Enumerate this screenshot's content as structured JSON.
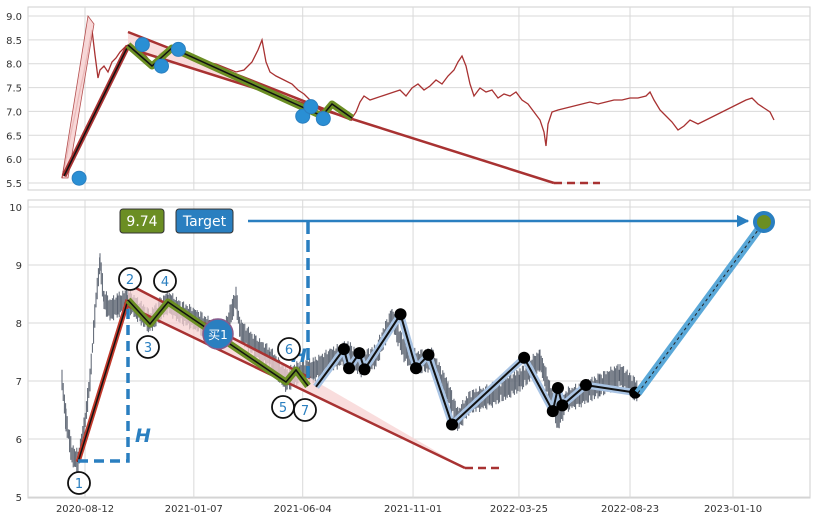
{
  "chart_data": [
    {
      "type": "line",
      "panel": "top",
      "ylim": [
        5.3,
        9.1
      ],
      "y_ticks": [
        "5.5",
        "6.0",
        "6.5",
        "7.0",
        "7.5",
        "8.0",
        "8.5",
        "9.0"
      ],
      "grid": true,
      "price_line_color": "#a83232",
      "markers": [
        {
          "x": "2020-08-04",
          "y": 5.6
        },
        {
          "x": "2020-10-29",
          "y": 8.4
        },
        {
          "x": "2020-11-24",
          "y": 7.95
        },
        {
          "x": "2020-12-17",
          "y": 8.3
        },
        {
          "x": "2021-06-04",
          "y": 6.9
        },
        {
          "x": "2021-06-15",
          "y": 7.1
        },
        {
          "x": "2021-07-02",
          "y": 6.85
        }
      ]
    },
    {
      "type": "line",
      "panel": "bottom",
      "ylim": [
        5,
        10.1
      ],
      "y_ticks": [
        "5",
        "6",
        "7",
        "8",
        "9",
        "10"
      ],
      "x_ticks": [
        "2020-08-12",
        "2021-01-07",
        "2021-06-04",
        "2021-11-01",
        "2022-03-25",
        "2022-08-23",
        "2023-01-10"
      ],
      "grid": true,
      "pattern_points": [
        {
          "label": "1",
          "x": "2020-08-12",
          "y": 5.6
        },
        {
          "label": "2",
          "x": "2020-10-29",
          "y": 8.35
        },
        {
          "label": "3",
          "x": "2020-11-24",
          "y": 7.95
        },
        {
          "label": "4",
          "x": "2020-12-17",
          "y": 8.3
        },
        {
          "label": "5",
          "x": "2021-06-04",
          "y": 6.9
        },
        {
          "label": "6",
          "x": "2021-06-15",
          "y": 7.05
        },
        {
          "label": "7",
          "x": "2021-06-22",
          "y": 6.9
        }
      ],
      "buy_marker": {
        "label": "买1",
        "x": "2021-03-10",
        "y": 7.75
      },
      "h_label": "H",
      "target_label": "Target",
      "target_value": "9.74",
      "target_point": {
        "x": "2023-01-28",
        "y": 9.74
      },
      "trade_path": [
        {
          "x": "2021-06-22",
          "y": 6.9
        },
        {
          "x": "2021-07-30",
          "y": 7.55
        },
        {
          "x": "2021-08-06",
          "y": 7.22
        },
        {
          "x": "2021-08-20",
          "y": 7.48
        },
        {
          "x": "2021-08-27",
          "y": 7.2
        },
        {
          "x": "2021-10-15",
          "y": 8.15
        },
        {
          "x": "2021-11-05",
          "y": 7.22
        },
        {
          "x": "2021-11-22",
          "y": 7.45
        },
        {
          "x": "2021-12-24",
          "y": 6.25
        },
        {
          "x": "2022-04-01",
          "y": 7.4
        },
        {
          "x": "2022-05-10",
          "y": 6.48
        },
        {
          "x": "2022-05-17",
          "y": 6.88
        },
        {
          "x": "2022-05-23",
          "y": 6.58
        },
        {
          "x": "2022-06-24",
          "y": 6.93
        },
        {
          "x": "2022-08-30",
          "y": 6.8
        }
      ]
    }
  ]
}
